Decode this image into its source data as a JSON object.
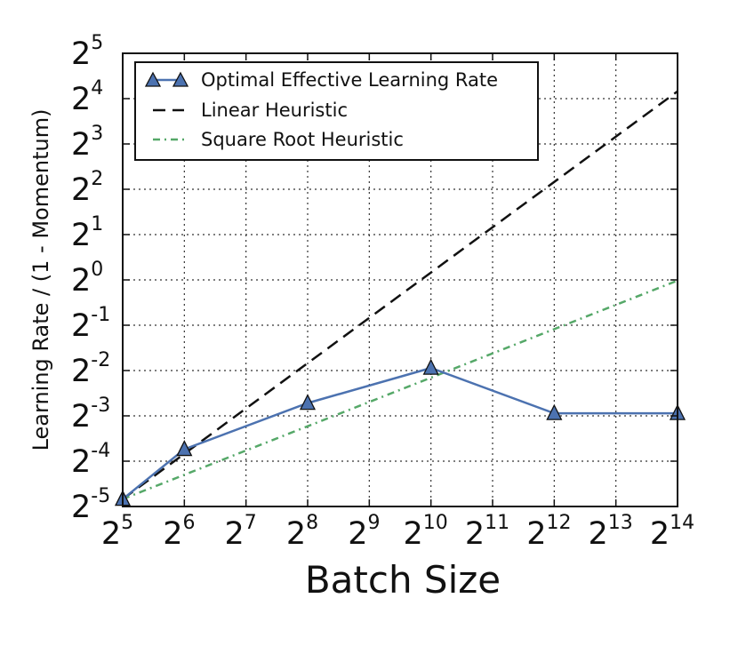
{
  "chart_data": {
    "type": "line",
    "x_scale": "log2",
    "y_scale": "log2",
    "xlabel": "Batch Size",
    "ylabel": "Learning Rate / (1 - Momentum)",
    "xlim": [
      32,
      16384
    ],
    "ylim": [
      0.03125,
      32
    ],
    "x_ticks": [
      {
        "value": 32,
        "base": "2",
        "exp": "5"
      },
      {
        "value": 64,
        "base": "2",
        "exp": "6"
      },
      {
        "value": 128,
        "base": "2",
        "exp": "7"
      },
      {
        "value": 256,
        "base": "2",
        "exp": "8"
      },
      {
        "value": 512,
        "base": "2",
        "exp": "9"
      },
      {
        "value": 1024,
        "base": "2",
        "exp": "10"
      },
      {
        "value": 2048,
        "base": "2",
        "exp": "11"
      },
      {
        "value": 4096,
        "base": "2",
        "exp": "12"
      },
      {
        "value": 8192,
        "base": "2",
        "exp": "13"
      },
      {
        "value": 16384,
        "base": "2",
        "exp": "14"
      }
    ],
    "y_ticks": [
      {
        "value": 0.03125,
        "base": "2",
        "exp": "-5"
      },
      {
        "value": 0.0625,
        "base": "2",
        "exp": "-4"
      },
      {
        "value": 0.125,
        "base": "2",
        "exp": "-3"
      },
      {
        "value": 0.25,
        "base": "2",
        "exp": "-2"
      },
      {
        "value": 0.5,
        "base": "2",
        "exp": "-1"
      },
      {
        "value": 1,
        "base": "2",
        "exp": "0"
      },
      {
        "value": 2,
        "base": "2",
        "exp": "1"
      },
      {
        "value": 4,
        "base": "2",
        "exp": "2"
      },
      {
        "value": 8,
        "base": "2",
        "exp": "3"
      },
      {
        "value": 16,
        "base": "2",
        "exp": "4"
      },
      {
        "value": 32,
        "base": "2",
        "exp": "5"
      }
    ],
    "grid": true,
    "legend_position": "top-left",
    "series": [
      {
        "name": "Optimal Effective Learning Rate",
        "style": "solid",
        "marker": "triangle",
        "color": "#4c72b0",
        "x": [
          32,
          64,
          256,
          1024,
          4096,
          16384
        ],
        "y": [
          0.035,
          0.075,
          0.152,
          0.26,
          0.13,
          0.13
        ]
      },
      {
        "name": "Linear Heuristic",
        "style": "dashed",
        "color": "#111111",
        "x": [
          32,
          16384
        ],
        "y": [
          0.035,
          17.9
        ]
      },
      {
        "name": "Square Root Heuristic",
        "style": "dashdot",
        "color": "#55a868",
        "x": [
          32,
          16384
        ],
        "y": [
          0.035,
          0.99
        ]
      }
    ]
  }
}
